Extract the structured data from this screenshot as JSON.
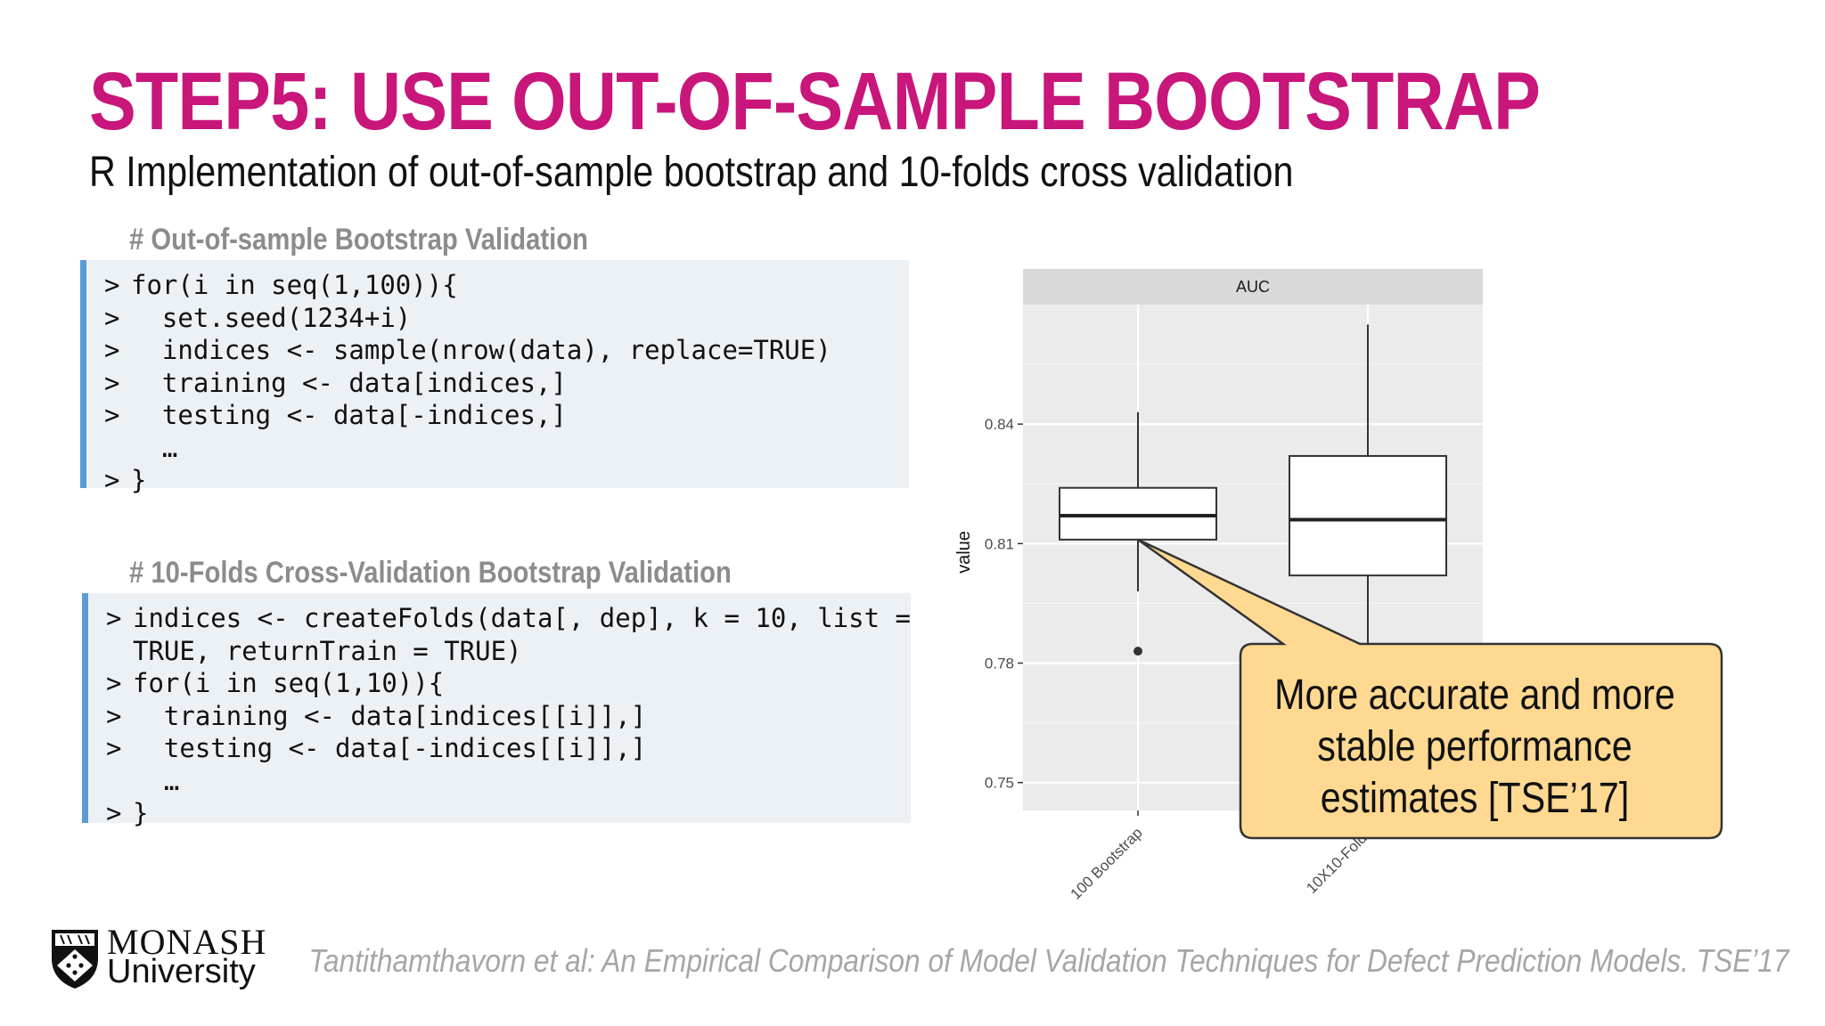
{
  "slide": {
    "title": "STEP5: USE OUT-OF-SAMPLE BOOTSTRAP",
    "subtitle": "R Implementation of out-of-sample bootstrap and 10-folds cross validation"
  },
  "code_blocks": [
    {
      "heading": "# Out-of-sample Bootstrap Validation",
      "lines": [
        {
          "prompt": ">",
          "code": "for(i in seq(1,100)){"
        },
        {
          "prompt": ">",
          "code": "  set.seed(1234+i)"
        },
        {
          "prompt": ">",
          "code": "  indices <- sample(nrow(data), replace=TRUE)"
        },
        {
          "prompt": ">",
          "code": "  training <- data[indices,]"
        },
        {
          "prompt": ">",
          "code": "  testing <- data[-indices,]"
        },
        {
          "prompt": "",
          "code": "  …"
        },
        {
          "prompt": ">",
          "code": "}"
        }
      ]
    },
    {
      "heading": "# 10-Folds Cross-Validation Bootstrap Validation",
      "lines": [
        {
          "prompt": ">",
          "code": "indices <- createFolds(data[, dep], k = 10, list ="
        },
        {
          "prompt": "",
          "code": "TRUE, returnTrain = TRUE)"
        },
        {
          "prompt": ">",
          "code": "for(i in seq(1,10)){"
        },
        {
          "prompt": ">",
          "code": "  training <- data[indices[[i]],]"
        },
        {
          "prompt": ">",
          "code": "  testing <- data[-indices[[i]],]"
        },
        {
          "prompt": "",
          "code": "  …"
        },
        {
          "prompt": ">",
          "code": "}"
        }
      ]
    }
  ],
  "chart_data": {
    "type": "boxplot",
    "facet_label": "AUC",
    "ylabel": "value",
    "xlabel": "",
    "categories": [
      "100 Bootstrap",
      "10X10-Folds"
    ],
    "ylim": [
      0.743,
      0.87
    ],
    "yticks": [
      0.75,
      0.78,
      0.81,
      0.84
    ],
    "ytick_labels": [
      "0.75",
      "0.78",
      "0.81",
      "0.84"
    ],
    "boxes": [
      {
        "name": "100 Bootstrap",
        "whisker_low": 0.798,
        "q1": 0.811,
        "median": 0.817,
        "q3": 0.824,
        "whisker_high": 0.843,
        "outliers": [
          0.783
        ]
      },
      {
        "name": "10X10-Folds",
        "whisker_low": 0.78,
        "q1": 0.802,
        "median": 0.816,
        "q3": 0.832,
        "whisker_high": 0.865,
        "outliers": []
      }
    ],
    "grid": true,
    "panel_color": "#ebebeb",
    "strip_color": "#d9d9d9"
  },
  "callout": {
    "lines": [
      "More accurate and more",
      "stable performance",
      "estimates [TSE’17]"
    ],
    "fill": "#ffd991",
    "border": "#333333"
  },
  "logo": {
    "line1": "MONASH",
    "line2": "University"
  },
  "citation": "Tantithamthavorn et al: An Empirical Comparison of Model Validation Techniques for Defect Prediction Models. TSE’17",
  "colors": {
    "accent": "#c8167a",
    "code_border": "#5b9bd5",
    "code_bg": "#ecf1f6"
  }
}
